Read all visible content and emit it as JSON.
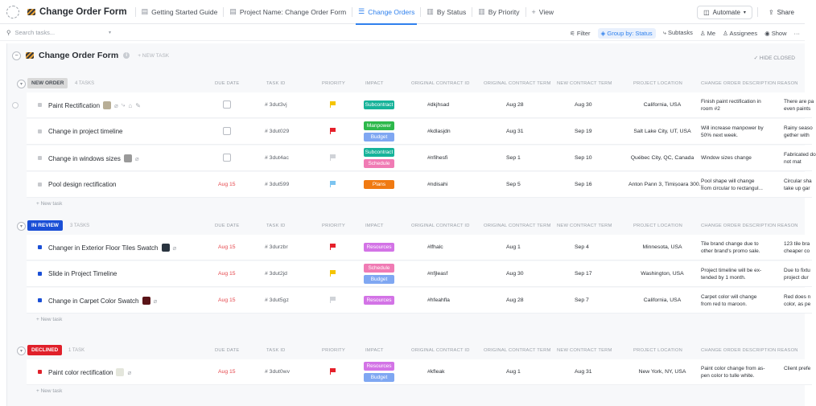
{
  "topbar": {
    "title": "Change Order Form",
    "tabs": [
      {
        "label": "Getting Started Guide",
        "icon": "doc-icon"
      },
      {
        "label": "Project Name: Change Order Form",
        "icon": "doc-icon"
      },
      {
        "label": "Change Orders",
        "icon": "list-icon"
      },
      {
        "label": "By Status",
        "icon": "board-icon"
      },
      {
        "label": "By Priority",
        "icon": "board-icon"
      },
      {
        "label": "View",
        "icon": "plus-icon"
      }
    ],
    "automate": "Automate",
    "share": "Share"
  },
  "toolbar": {
    "search_placeholder": "Search tasks...",
    "filter": "Filter",
    "group_by": "Group by: Status",
    "subtasks": "Subtasks",
    "me": "Me",
    "assignees": "Assignees",
    "show": "Show"
  },
  "list": {
    "title": "Change Order Form",
    "new_task": "+ NEW TASK",
    "hide_closed": "HIDE CLOSED",
    "add_task": "+ New task"
  },
  "columns": [
    "DUE DATE",
    "TASK ID",
    "PRIORITY",
    "IMPACT",
    "ORIGINAL CONTRACT ID",
    "ORIGINAL CONTRACT TERM",
    "NEW CONTRACT TERM",
    "PROJECT LOCATION",
    "CHANGE ORDER DESCRIPTION",
    "REASON"
  ],
  "groups": [
    {
      "status": "NEW ORDER",
      "count": "4 TASKS",
      "badge_bg": "#d9d9d9",
      "badge_fg": "#4a4f57",
      "square": "#c7c9cd",
      "tasks": [
        {
          "name": "Paint Rectification",
          "due": "",
          "id": "# 3dut3vj",
          "priority": "yellow",
          "impact": [
            "Subcontract"
          ],
          "contract_id": "#dkjhsad",
          "orig_term": "Aug 28",
          "new_term": "Aug 30",
          "location": "California, USA",
          "desc": "Finish paint rectification in room #2",
          "reason": "There are pa even paints"
        },
        {
          "name": "Change in project timeline",
          "due": "",
          "id": "# 3dut029",
          "priority": "red",
          "impact": [
            "Manpower",
            "Budget"
          ],
          "contract_id": "#kdlasjdn",
          "orig_term": "Aug 31",
          "new_term": "Sep 19",
          "location": "Salt Lake City, UT, USA",
          "desc": "Will increase manpower by 50% next week.",
          "reason": "Rainy seaso gether with"
        },
        {
          "name": "Change in windows sizes",
          "due": "",
          "id": "# 3dut4ac",
          "priority": "gray",
          "impact": [
            "Subcontract",
            "Schedule"
          ],
          "contract_id": "#nfihesfi",
          "orig_term": "Sep 1",
          "new_term": "Sep 10",
          "location": "Québec City, QC, Canada",
          "desc": "Window sizes change",
          "reason": "Fabricated do not mat"
        },
        {
          "name": "Pool design rectification",
          "due": "Aug 15",
          "id": "# 3dut599",
          "priority": "blue",
          "impact": [
            "Plans"
          ],
          "contract_id": "#ndisahi",
          "orig_term": "Sep 5",
          "new_term": "Sep 16",
          "location": "Anton Pann 3, Timișoara 300...",
          "desc": "Pool shape will change from circular to rectangul...",
          "reason": "Circular sha take up gar"
        }
      ]
    },
    {
      "status": "IN REVIEW",
      "count": "3 TASKS",
      "badge_bg": "#1a4fd6",
      "badge_fg": "#ffffff",
      "square": "#1a4fd6",
      "tasks": [
        {
          "name": "Changer in Exterior Floor Tiles Swatch",
          "due": "Aug 15",
          "id": "# 3durzbr",
          "priority": "red",
          "impact": [
            "Resources"
          ],
          "contract_id": "#lfhalc",
          "orig_term": "Aug 1",
          "new_term": "Sep 4",
          "location": "Minnesota, USA",
          "desc": "Tile brand change due to other brand's promo sale.",
          "reason": "123 tile bra cheaper co"
        },
        {
          "name": "Slide in Project Timeline",
          "due": "Aug 15",
          "id": "# 3dut2jd",
          "priority": "yellow",
          "impact": [
            "Schedule",
            "Budget"
          ],
          "contract_id": "#nfjleasf",
          "orig_term": "Aug 30",
          "new_term": "Sep 17",
          "location": "Washington, USA",
          "desc": "Project timeline will be ex-tended by 1 month.",
          "reason": "Due to fixtu project dur"
        },
        {
          "name": "Change in Carpet Color Swatch",
          "due": "Aug 15",
          "id": "# 3dut5gz",
          "priority": "gray",
          "impact": [
            "Resources"
          ],
          "contract_id": "#hfeahfla",
          "orig_term": "Aug 28",
          "new_term": "Sep 7",
          "location": "California, USA",
          "desc": "Carpet color will change from red to maroon.",
          "reason": "Red does n color, as pe"
        }
      ]
    },
    {
      "status": "DECLINED",
      "count": "1 TASK",
      "badge_bg": "#e0202a",
      "badge_fg": "#ffffff",
      "square": "#e0202a",
      "tasks": [
        {
          "name": "Paint color rectification",
          "due": "Aug 15",
          "id": "# 3dut0wv",
          "priority": "red",
          "impact": [
            "Resources",
            "Budget"
          ],
          "contract_id": "#kfleak",
          "orig_term": "Aug 1",
          "new_term": "Aug 31",
          "location": "New York, NY, USA",
          "desc": "Paint color change from as-pen color to tulle white.",
          "reason": "Client prefe"
        }
      ]
    }
  ],
  "impact_colors": {
    "Subcontract": "#17b39a",
    "Manpower": "#2db84b",
    "Budget": "#7fa7f2",
    "Schedule": "#f07bb4",
    "Plans": "#f07a12",
    "Resources": "#d373e6"
  },
  "priority_colors": {
    "yellow": "#f5c400",
    "red": "#e5202a",
    "gray": "#d0d3d8",
    "blue": "#7cc4f0"
  }
}
